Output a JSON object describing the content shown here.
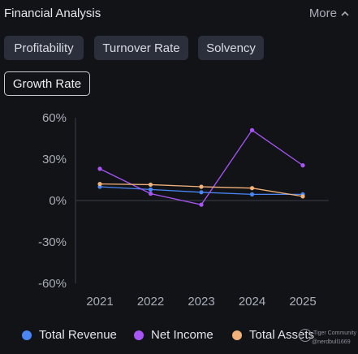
{
  "header": {
    "title": "Financial Analysis",
    "more_label": "More"
  },
  "tabs": [
    {
      "label": "Profitability",
      "active": false
    },
    {
      "label": "Turnover Rate",
      "active": false
    },
    {
      "label": "Solvency",
      "active": false
    },
    {
      "label": "Growth Rate",
      "active": true
    }
  ],
  "colors": {
    "total_revenue": "#4a86f5",
    "net_income": "#a855f7",
    "total_assets": "#f0b27a",
    "axis_text": "#a8adb8",
    "zero_line": "#3a3f4a"
  },
  "chart_data": {
    "type": "line",
    "x": [
      "2021",
      "2022",
      "2023",
      "2024",
      "2025"
    ],
    "y_ticks": [
      "60%",
      "30%",
      "0%",
      "-30%",
      "-60%"
    ],
    "ylim": [
      -60,
      60
    ],
    "grid": false,
    "legend_position": "bottom",
    "series": [
      {
        "name": "Total Revenue",
        "values": [
          10,
          8,
          6,
          4.5,
          4.5
        ]
      },
      {
        "name": "Net Income",
        "values": [
          23,
          5,
          -3,
          51,
          25.5
        ]
      },
      {
        "name": "Total Assets",
        "values": [
          12,
          11.5,
          10,
          9,
          3
        ]
      }
    ]
  },
  "legend": {
    "items": [
      "Total Revenue",
      "Net Income",
      "Total Assets"
    ]
  },
  "watermark": {
    "line1": "Tiger Community",
    "line2": "@nerdbull1669"
  }
}
